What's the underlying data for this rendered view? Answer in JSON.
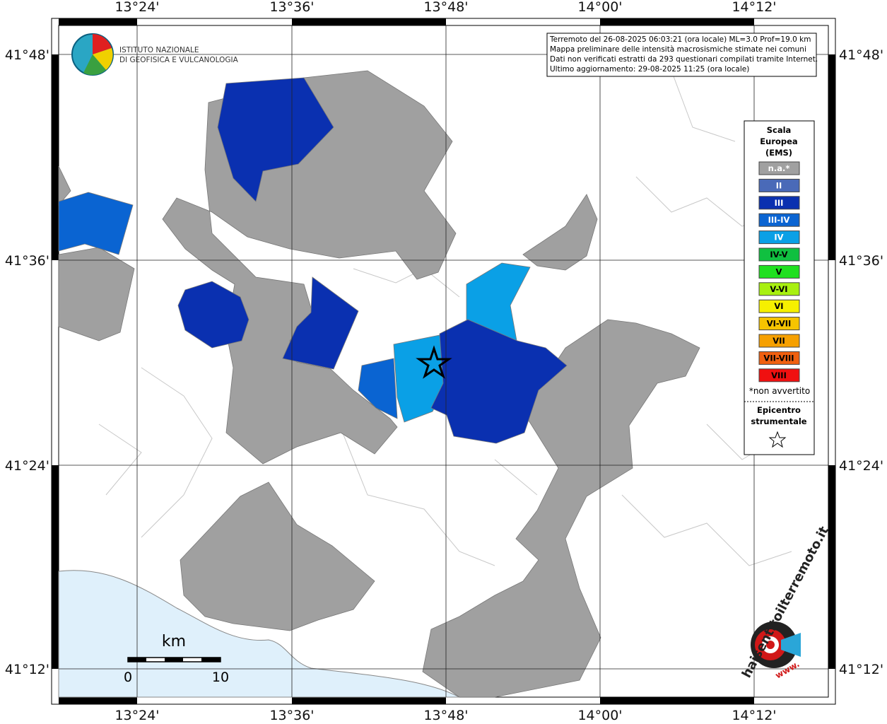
{
  "header": {
    "lines": [
      "Terremoto del 26-08-2025 06:03:21 (ora locale) ML=3.0 Prof=19.0 km",
      "Mappa preliminare delle intensità macrosismiche stimate nei comuni",
      "Dati non verificati estratti da 293 questionari compilati tramite Internet.",
      "Ultimo aggiornamento: 29-08-2025 11:25 (ora locale)"
    ]
  },
  "logo": {
    "line1": "ISTITUTO NAZIONALE",
    "line2": "DI GEOFISICA E VULCANOLOGIA"
  },
  "axes": {
    "longitude_labels": [
      "13°24'",
      "13°36'",
      "13°48'",
      "14°00'",
      "14°12'"
    ],
    "latitude_labels": [
      "41°48'",
      "41°36'",
      "41°24'",
      "41°12'"
    ]
  },
  "legend": {
    "title_lines": [
      "Scala",
      "Europea",
      "(EMS)"
    ],
    "items": [
      {
        "label": "n.a.*",
        "color": "#a0a0a0"
      },
      {
        "label": "II",
        "color": "#4a6ab8"
      },
      {
        "label": "III",
        "color": "#0a30b0"
      },
      {
        "label": "III-IV",
        "color": "#0a64d2"
      },
      {
        "label": "IV",
        "color": "#0aa0e6"
      },
      {
        "label": "IV-V",
        "color": "#10c040"
      },
      {
        "label": "V",
        "color": "#20e020"
      },
      {
        "label": "V-VI",
        "color": "#a8f010"
      },
      {
        "label": "VI",
        "color": "#f6f000"
      },
      {
        "label": "VI-VII",
        "color": "#f6c400"
      },
      {
        "label": "VII",
        "color": "#f6a000"
      },
      {
        "label": "VII-VIII",
        "color": "#f06010"
      },
      {
        "label": "VIII",
        "color": "#f01010"
      }
    ],
    "footnote": "*non avvertito",
    "epicenter_lines": [
      "Epicentro",
      "strumentale"
    ]
  },
  "scale_bar": {
    "unit": "km",
    "labels": [
      "0",
      "10"
    ]
  },
  "watermark": {
    "site": "haisentitoilterremoto.it",
    "prefix": "www."
  }
}
